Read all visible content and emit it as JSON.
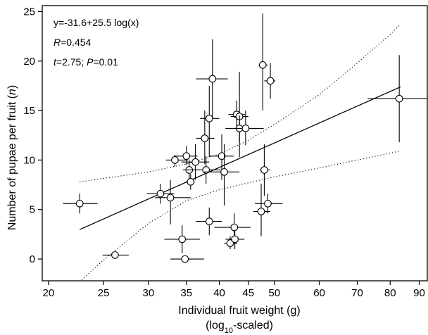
{
  "chart_data": {
    "type": "scatter",
    "title": "",
    "xlabel": "Individual fruit weight (g)",
    "xlabel_sub": "(log10-scaled)",
    "xlabel_sub_parts": [
      "(log",
      "10",
      "-scaled)"
    ],
    "ylabel_parts": [
      "Number of pupae per fruit (",
      "n",
      ")"
    ],
    "x_scale": "log10",
    "xlim": [
      19.5,
      93
    ],
    "ylim": [
      -2.2,
      25.6
    ],
    "x_ticks": [
      20,
      25,
      30,
      35,
      40,
      45,
      50,
      60,
      70,
      80,
      90
    ],
    "y_ticks": [
      0,
      5,
      10,
      15,
      20,
      25
    ],
    "grid": false,
    "annotations": [
      {
        "text": "y=-31.6+25.5 log(x)"
      },
      {
        "italic": "R",
        "rest": "=0.454"
      },
      {
        "italic": "t",
        "mid": "=2.75; ",
        "italic2": "P",
        "rest": "=0.01"
      }
    ],
    "fit_line": {
      "intercept": -31.6,
      "slope": 25.5,
      "x_range": [
        22.7,
        83.5
      ]
    },
    "confidence_band": {
      "upper": [
        [
          22.7,
          7.8
        ],
        [
          30,
          8.8
        ],
        [
          35,
          9.6
        ],
        [
          40,
          10.6
        ],
        [
          45,
          12.0
        ],
        [
          50,
          13.6
        ],
        [
          60,
          16.6
        ],
        [
          70,
          19.8
        ],
        [
          80,
          22.7
        ],
        [
          83,
          23.6
        ]
      ],
      "lower": [
        [
          22.7,
          -2.3
        ],
        [
          25,
          -0.1
        ],
        [
          30,
          3.6
        ],
        [
          35,
          5.9
        ],
        [
          40,
          7.0
        ],
        [
          45,
          7.7
        ],
        [
          50,
          8.3
        ],
        [
          60,
          9.2
        ],
        [
          70,
          10.0
        ],
        [
          80,
          10.7
        ],
        [
          83,
          10.9
        ]
      ]
    },
    "points": [
      {
        "x": 22.7,
        "y": 5.6,
        "xerr": [
          21.2,
          24.4
        ],
        "yerr": [
          4.6,
          6.6
        ]
      },
      {
        "x": 26.2,
        "y": 0.4,
        "xerr": [
          24.9,
          27.7
        ],
        "yerr": [
          0.4,
          0.4
        ]
      },
      {
        "x": 31.5,
        "y": 6.6,
        "xerr": [
          29.8,
          33.3
        ],
        "yerr": [
          5.6,
          7.6
        ]
      },
      {
        "x": 32.8,
        "y": 6.2,
        "xerr": [
          30.8,
          35.6
        ],
        "yerr": [
          3.5,
          8.0
        ]
      },
      {
        "x": 33.4,
        "y": 10.0,
        "xerr": [
          32.2,
          35.2
        ],
        "yerr": [
          9.3,
          10.5
        ]
      },
      {
        "x": 34.4,
        "y": 2.0,
        "xerr": [
          32.0,
          37.0
        ],
        "yerr": [
          0.6,
          3.4
        ]
      },
      {
        "x": 34.8,
        "y": 0.0,
        "xerr": [
          32.8,
          37.6
        ],
        "yerr": [
          0.0,
          0.0
        ]
      },
      {
        "x": 35.0,
        "y": 10.4,
        "xerr": [
          33.3,
          36.6
        ],
        "yerr": [
          9.5,
          11.4
        ]
      },
      {
        "x": 35.4,
        "y": 9.0,
        "xerr": [
          34.5,
          37.0
        ],
        "yerr": [
          8.0,
          10.0
        ]
      },
      {
        "x": 35.6,
        "y": 7.8,
        "xerr": [
          34.9,
          36.2
        ],
        "yerr": [
          7.0,
          8.6
        ]
      },
      {
        "x": 36.3,
        "y": 9.8,
        "xerr": [
          34.3,
          38.4
        ],
        "yerr": [
          8.0,
          11.6
        ]
      },
      {
        "x": 37.7,
        "y": 12.2,
        "xerr": [
          36.4,
          39.2
        ],
        "yerr": [
          9.6,
          15.0
        ]
      },
      {
        "x": 37.9,
        "y": 9.0,
        "xerr": [
          35.0,
          40.2
        ],
        "yerr": [
          7.6,
          10.4
        ]
      },
      {
        "x": 38.4,
        "y": 14.2,
        "xerr": [
          37.0,
          40.0
        ],
        "yerr": [
          10.3,
          17.5
        ]
      },
      {
        "x": 38.4,
        "y": 3.8,
        "xerr": [
          36.4,
          40.4
        ],
        "yerr": [
          2.4,
          5.2
        ]
      },
      {
        "x": 38.9,
        "y": 18.2,
        "xerr": [
          36.4,
          41.4
        ],
        "yerr": [
          14.2,
          22.2
        ]
      },
      {
        "x": 40.4,
        "y": 10.4,
        "xerr": [
          38.4,
          42.4
        ],
        "yerr": [
          8.0,
          12.6
        ]
      },
      {
        "x": 40.8,
        "y": 8.8,
        "xerr": [
          37.6,
          43.4
        ],
        "yerr": [
          5.4,
          11.6
        ]
      },
      {
        "x": 41.8,
        "y": 1.6,
        "xerr": [
          40.8,
          43.0
        ],
        "yerr": [
          1.0,
          2.3
        ]
      },
      {
        "x": 42.5,
        "y": 3.2,
        "xerr": [
          39.2,
          45.4
        ],
        "yerr": [
          1.8,
          4.6
        ]
      },
      {
        "x": 42.6,
        "y": 2.0,
        "xerr": [
          41.0,
          44.3
        ],
        "yerr": [
          1.0,
          2.8
        ]
      },
      {
        "x": 42.9,
        "y": 14.6,
        "xerr": [
          41.5,
          44.4
        ],
        "yerr": [
          13.0,
          16.0
        ]
      },
      {
        "x": 43.4,
        "y": 14.4,
        "xerr": [
          41.9,
          45.0
        ],
        "yerr": [
          10.3,
          18.9
        ]
      },
      {
        "x": 43.4,
        "y": 13.2,
        "xerr": [
          42.7,
          44.2
        ],
        "yerr": [
          11.8,
          14.5
        ]
      },
      {
        "x": 44.5,
        "y": 13.2,
        "xerr": [
          41.0,
          47.9
        ],
        "yerr": [
          11.5,
          15.0
        ]
      },
      {
        "x": 47.4,
        "y": 4.8,
        "xerr": [
          45.9,
          49.2
        ],
        "yerr": [
          2.3,
          7.6
        ]
      },
      {
        "x": 47.7,
        "y": 19.6,
        "xerr": [
          46.9,
          48.7
        ],
        "yerr": [
          15.0,
          24.8
        ]
      },
      {
        "x": 48.0,
        "y": 9.0,
        "xerr": [
          47.1,
          49.2
        ],
        "yerr": [
          6.4,
          11.6
        ]
      },
      {
        "x": 48.7,
        "y": 5.6,
        "xerr": [
          46.2,
          51.7
        ],
        "yerr": [
          4.6,
          6.6
        ]
      },
      {
        "x": 49.2,
        "y": 18.0,
        "xerr": [
          48.0,
          50.2
        ],
        "yerr": [
          16.2,
          19.8
        ]
      },
      {
        "x": 83.0,
        "y": 16.2,
        "xerr": [
          73.0,
          94.0
        ],
        "yerr": [
          11.8,
          20.6
        ]
      }
    ]
  }
}
